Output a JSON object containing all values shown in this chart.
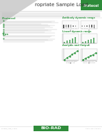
{
  "body_bg": "#ffffff",
  "gray_triangle_color": "#d0d0d0",
  "header_box_color": "#2e8b3a",
  "header_box_label": "Protocol",
  "header_box_label_color": "#ffffff",
  "title_text": "ropriate Sample Load",
  "title_color": "#333333",
  "title_fontsize": 5.2,
  "underline_color": "#cccccc",
  "intro_line_color": "#bbbbbb",
  "green_color": "#3a9a4a",
  "text_line_color": "#c0c0c0",
  "bullet_color": "#3a9a4a",
  "section_protocol": "Protocol",
  "section_tips": "Tips",
  "fig_label1": "Antibody dynamic range",
  "fig_label2": "Linear dynamic range",
  "fig_label3": "Analysis and Output",
  "band_color": "#888888",
  "bar_color": "#3a9a4a",
  "plot_color": "#3a9a4a",
  "plot_dot_color": "#3a9a4a",
  "axis_color": "#888888",
  "caption_color": "#999999",
  "footer_logo_bg": "#2e8b3a",
  "footer_logo_text": "BIO-RAD",
  "footer_logo_color": "#ffffff",
  "footer_left": "bulletin_xxxx_x  xxxx",
  "footer_right": "XXXX  XXX  XXXXXX",
  "footer_text_color": "#aaaaaa",
  "sep_line_color": "#dddddd"
}
